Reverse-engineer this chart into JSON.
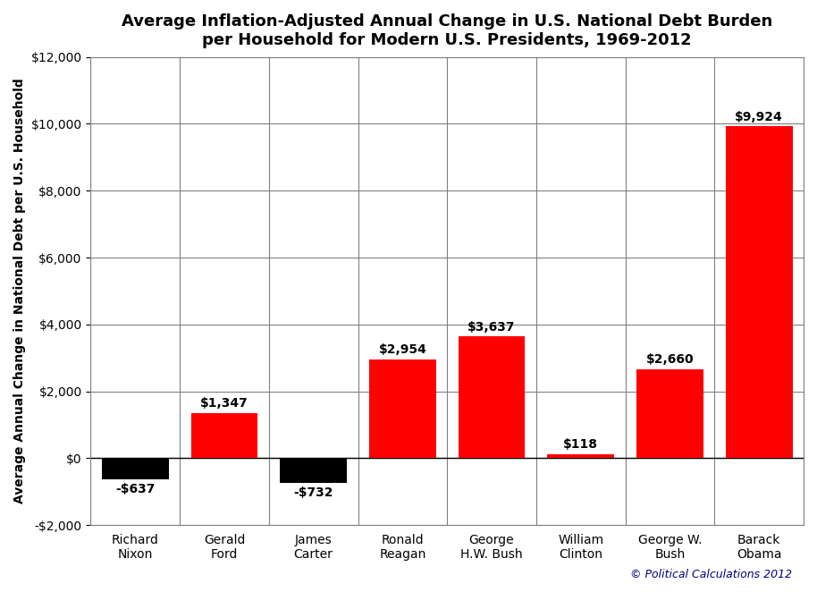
{
  "title_line1": "Average Inflation-Adjusted Annual Change in U.S. National Debt Burden",
  "title_line2": "per Household for Modern U.S. Presidents, 1969-2012",
  "ylabel": "Average Annual Change in National Debt per U.S. Household",
  "copyright": "© Political Calculations 2012",
  "categories": [
    "Richard\nNixon",
    "Gerald\nFord",
    "James\nCarter",
    "Ronald\nReagan",
    "George\nH.W. Bush",
    "William\nClinton",
    "George W.\nBush",
    "Barack\nObama"
  ],
  "values": [
    -637,
    1347,
    -732,
    2954,
    3637,
    118,
    2660,
    9924
  ],
  "labels": [
    "-$637",
    "$1,347",
    "-$732",
    "$2,954",
    "$3,637",
    "$118",
    "$2,660",
    "$9,924"
  ],
  "bar_colors_positive": "#ff0000",
  "bar_colors_negative": "#000000",
  "ylim": [
    -2000,
    12000
  ],
  "ytick_step": 2000,
  "background_color": "#ffffff",
  "grid_color": "#808080",
  "title_fontsize": 13,
  "label_fontsize": 10,
  "axis_label_fontsize": 10,
  "tick_fontsize": 10,
  "copyright_fontsize": 9,
  "copyright_color": "#000080"
}
